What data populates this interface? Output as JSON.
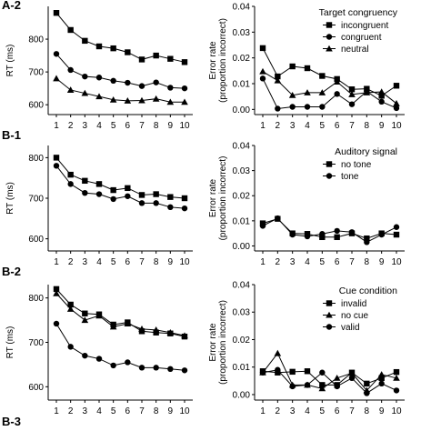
{
  "figure": {
    "panels": [
      "A-2",
      "B-1",
      "B-2",
      "B-3"
    ]
  },
  "chart_data": [
    {
      "type": "line",
      "row": 0,
      "side": "rt",
      "ylabel": "RT (ms)",
      "ylim": [
        570,
        900
      ],
      "yticks": [
        600,
        700,
        800
      ],
      "x": [
        1,
        2,
        3,
        4,
        5,
        6,
        7,
        8,
        9,
        10
      ],
      "legend": null,
      "series": [
        {
          "marker": "square",
          "values": [
            880,
            828,
            795,
            778,
            772,
            760,
            738,
            750,
            740,
            730
          ]
        },
        {
          "marker": "circle",
          "values": [
            755,
            706,
            686,
            683,
            673,
            667,
            657,
            668,
            652,
            650
          ]
        },
        {
          "marker": "triangle",
          "values": [
            680,
            645,
            635,
            625,
            615,
            612,
            613,
            618,
            608,
            608
          ]
        }
      ]
    },
    {
      "type": "line",
      "row": 0,
      "side": "er",
      "ylabel": "Error rate (proportion incorrect)",
      "ylim": [
        -0.002,
        0.04
      ],
      "yticks": [
        0.0,
        0.01,
        0.02,
        0.03,
        0.04
      ],
      "x": [
        1,
        2,
        3,
        4,
        5,
        6,
        7,
        8,
        9,
        10
      ],
      "legend": {
        "title": "Target congruency"
      },
      "series": [
        {
          "name": "incongruent",
          "marker": "square",
          "values": [
            0.0238,
            0.0128,
            0.0167,
            0.016,
            0.013,
            0.0118,
            0.0078,
            0.008,
            0.0053,
            0.0092
          ]
        },
        {
          "name": "congruent",
          "marker": "circle",
          "values": [
            0.012,
            0.0003,
            0.001,
            0.001,
            0.001,
            0.006,
            0.002,
            0.007,
            0.003,
            0.0005
          ]
        },
        {
          "name": "neutral",
          "marker": "triangle",
          "values": [
            0.0147,
            0.0112,
            0.0055,
            0.0065,
            0.0065,
            0.0107,
            0.0058,
            0.0065,
            0.0068,
            0.0023
          ]
        }
      ]
    },
    {
      "type": "line",
      "row": 1,
      "side": "rt",
      "ylabel": "RT (ms)",
      "ylim": [
        570,
        830
      ],
      "yticks": [
        600,
        700,
        800
      ],
      "x": [
        1,
        2,
        3,
        4,
        5,
        6,
        7,
        8,
        9,
        10
      ],
      "legend": null,
      "series": [
        {
          "marker": "square",
          "values": [
            800,
            758,
            743,
            735,
            720,
            725,
            708,
            710,
            703,
            700
          ]
        },
        {
          "marker": "circle",
          "values": [
            780,
            735,
            713,
            710,
            698,
            705,
            688,
            688,
            678,
            675
          ]
        }
      ]
    },
    {
      "type": "line",
      "row": 1,
      "side": "er",
      "ylabel": "Error rate (proportion incorrect)",
      "ylim": [
        -0.002,
        0.04
      ],
      "yticks": [
        0.0,
        0.01,
        0.02,
        0.03,
        0.04
      ],
      "x": [
        1,
        2,
        3,
        4,
        5,
        6,
        7,
        8,
        9,
        10
      ],
      "legend": {
        "title": "Auditory signal"
      },
      "series": [
        {
          "name": "no tone",
          "marker": "square",
          "values": [
            0.009,
            0.0108,
            0.005,
            0.0048,
            0.0035,
            0.0035,
            0.005,
            0.003,
            0.005,
            0.0045
          ]
        },
        {
          "name": "tone",
          "marker": "circle",
          "values": [
            0.008,
            0.011,
            0.0045,
            0.0038,
            0.0048,
            0.006,
            0.0055,
            0.0015,
            0.0045,
            0.0075
          ]
        }
      ]
    },
    {
      "type": "line",
      "row": 2,
      "side": "rt",
      "ylabel": "RT (ms)",
      "ylim": [
        570,
        830
      ],
      "yticks": [
        600,
        700,
        800
      ],
      "x": [
        1,
        2,
        3,
        4,
        5,
        6,
        7,
        8,
        9,
        10
      ],
      "legend": null,
      "series": [
        {
          "marker": "square",
          "values": [
            820,
            785,
            765,
            763,
            740,
            745,
            725,
            722,
            720,
            713
          ]
        },
        {
          "marker": "triangle",
          "values": [
            810,
            775,
            750,
            760,
            735,
            742,
            730,
            728,
            722,
            715
          ]
        },
        {
          "marker": "circle",
          "values": [
            742,
            690,
            670,
            663,
            648,
            655,
            643,
            643,
            640,
            637
          ]
        }
      ]
    },
    {
      "type": "line",
      "row": 2,
      "side": "er",
      "ylabel": "Error rate (proportion incorrect)",
      "ylim": [
        -0.002,
        0.04
      ],
      "yticks": [
        0.0,
        0.01,
        0.02,
        0.03,
        0.04
      ],
      "x": [
        1,
        2,
        3,
        4,
        5,
        6,
        7,
        8,
        9,
        10
      ],
      "legend": {
        "title": "Cue condition"
      },
      "series": [
        {
          "name": "invalid",
          "marker": "square",
          "values": [
            0.0085,
            0.008,
            0.0083,
            0.0085,
            0.0035,
            0.0035,
            0.008,
            0.004,
            0.006,
            0.0082
          ]
        },
        {
          "name": "no cue",
          "marker": "triangle",
          "values": [
            0.008,
            0.015,
            0.0035,
            0.0035,
            0.0022,
            0.006,
            0.0078,
            0.0015,
            0.0073,
            0.006
          ]
        },
        {
          "name": "valid",
          "marker": "circle",
          "values": [
            0.008,
            0.009,
            0.003,
            0.0035,
            0.008,
            0.003,
            0.006,
            0.0005,
            0.004,
            0.0015
          ]
        }
      ]
    }
  ]
}
